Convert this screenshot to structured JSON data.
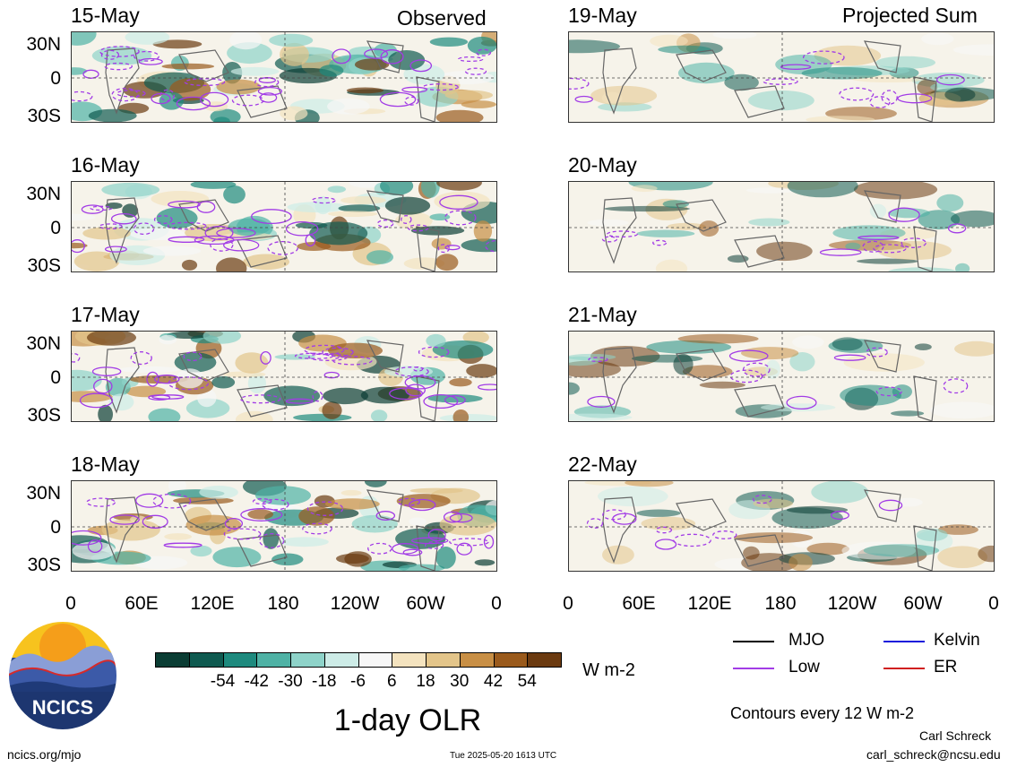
{
  "columns": [
    {
      "title": "Observed",
      "dates": [
        "15-May",
        "16-May",
        "17-May",
        "18-May"
      ]
    },
    {
      "title": "Projected Sum",
      "dates": [
        "19-May",
        "20-May",
        "21-May",
        "22-May"
      ]
    }
  ],
  "lat_labels": [
    "30N",
    "0",
    "30S"
  ],
  "lon_labels": [
    "0",
    "60E",
    "120E",
    "180",
    "120W",
    "60W",
    "0"
  ],
  "colorbar": {
    "colors": [
      "#0b3d34",
      "#0f5a50",
      "#1e8a7e",
      "#4fb2a5",
      "#8ed3c9",
      "#cdece7",
      "#f7f7f7",
      "#f4e3bf",
      "#e3c58a",
      "#c88f45",
      "#9a5a1c",
      "#6b3a10"
    ],
    "labels": [
      "-54",
      "-42",
      "-30",
      "-18",
      "-6",
      "6",
      "18",
      "30",
      "42",
      "54"
    ],
    "units": "W m-2"
  },
  "main_title": "1-day OLR",
  "legend": [
    {
      "label": "MJO",
      "color": "#000000"
    },
    {
      "label": "Kelvin",
      "color": "#1a1adc"
    },
    {
      "label": "Low",
      "color": "#a23ce6"
    },
    {
      "label": "ER",
      "color": "#d02020"
    }
  ],
  "contours_note": "Contours every 12 W m-2",
  "logo_text": "NCICS",
  "footer": {
    "site": "ncics.org/mjo",
    "timestamp": "Tue 2025-05-20 1613 UTC",
    "author": "Carl Schreck",
    "email": "carl_schreck@ncsu.edu"
  }
}
